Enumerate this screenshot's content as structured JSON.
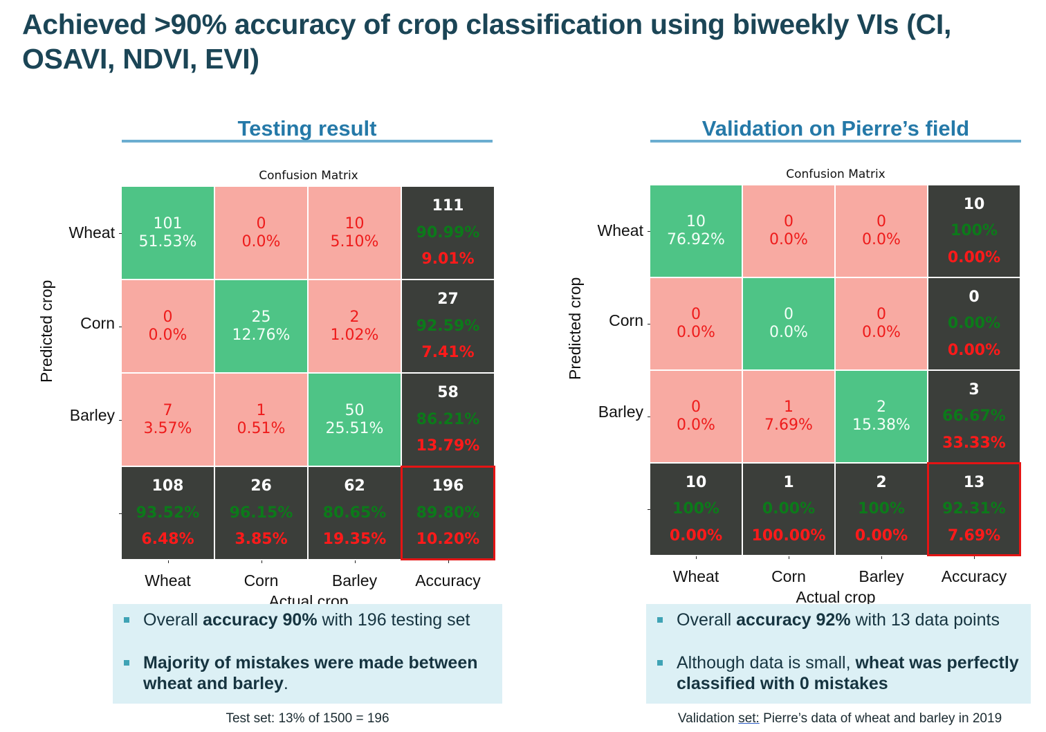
{
  "title": "Achieved >90% accuracy of crop classification using biweekly VIs (CI, OSAVI, NDVI, EVI)",
  "chart_data": [
    {
      "type": "heatmap",
      "panel_heading": "Testing result",
      "title": "Confusion Matrix",
      "xlabel": "Actual crop",
      "ylabel": "Predicted crop",
      "row_labels": [
        "Wheat",
        "Corn",
        "Barley"
      ],
      "col_labels": [
        "Wheat",
        "Corn",
        "Barley",
        "Accuracy"
      ],
      "matrix": [
        [
          {
            "count": "101",
            "pct": "51.53%"
          },
          {
            "count": "0",
            "pct": "0.0%"
          },
          {
            "count": "10",
            "pct": "5.10%"
          }
        ],
        [
          {
            "count": "0",
            "pct": "0.0%"
          },
          {
            "count": "25",
            "pct": "12.76%"
          },
          {
            "count": "2",
            "pct": "1.02%"
          }
        ],
        [
          {
            "count": "7",
            "pct": "3.57%"
          },
          {
            "count": "1",
            "pct": "0.51%"
          },
          {
            "count": "50",
            "pct": "25.51%"
          }
        ]
      ],
      "row_summary": [
        {
          "total": "111",
          "correct": "90.99%",
          "error": "9.01%"
        },
        {
          "total": "27",
          "correct": "92.59%",
          "error": "7.41%"
        },
        {
          "total": "58",
          "correct": "86.21%",
          "error": "13.79%"
        }
      ],
      "col_summary": [
        {
          "total": "108",
          "correct": "93.52%",
          "error": "6.48%"
        },
        {
          "total": "26",
          "correct": "96.15%",
          "error": "3.85%"
        },
        {
          "total": "62",
          "correct": "80.65%",
          "error": "19.35%"
        }
      ],
      "overall": {
        "total": "196",
        "correct": "89.80%",
        "error": "10.20%"
      },
      "notes_html": [
        "Overall <b>accuracy 90%</b> with 196 testing set",
        "<b>Majority of mistakes were made between wheat and barley</b>."
      ],
      "footnote_html": "Test set: 13% of 1500 = 196"
    },
    {
      "type": "heatmap",
      "panel_heading": "Validation on Pierre’s field",
      "title": "Confusion Matrix",
      "xlabel": "Actual crop",
      "ylabel": "Predicted crop",
      "row_labels": [
        "Wheat",
        "Corn",
        "Barley"
      ],
      "col_labels": [
        "Wheat",
        "Corn",
        "Barley",
        "Accuracy"
      ],
      "matrix": [
        [
          {
            "count": "10",
            "pct": "76.92%"
          },
          {
            "count": "0",
            "pct": "0.0%"
          },
          {
            "count": "0",
            "pct": "0.0%"
          }
        ],
        [
          {
            "count": "0",
            "pct": "0.0%"
          },
          {
            "count": "0",
            "pct": "0.0%"
          },
          {
            "count": "0",
            "pct": "0.0%"
          }
        ],
        [
          {
            "count": "0",
            "pct": "0.0%"
          },
          {
            "count": "1",
            "pct": "7.69%"
          },
          {
            "count": "2",
            "pct": "15.38%"
          }
        ]
      ],
      "row_summary": [
        {
          "total": "10",
          "correct": "100%",
          "error": "0.00%"
        },
        {
          "total": "0",
          "correct": "0.00%",
          "error": "0.00%"
        },
        {
          "total": "3",
          "correct": "66.67%",
          "error": "33.33%"
        }
      ],
      "col_summary": [
        {
          "total": "10",
          "correct": "100%",
          "error": "0.00%"
        },
        {
          "total": "1",
          "correct": "0.00%",
          "error": "100.00%"
        },
        {
          "total": "2",
          "correct": "100%",
          "error": "0.00%"
        }
      ],
      "overall": {
        "total": "13",
        "correct": "92.31%",
        "error": "7.69%"
      },
      "notes_html": [
        "Overall <b>accuracy 92%</b> with 13 data points",
        "Although data is small, <b>wheat was perfectly classified with 0 mistakes</b>"
      ],
      "footnote_html": "Validation <span class=\"u\">set:</span> Pierre’s data of wheat and barley in 2019"
    }
  ],
  "colors": {
    "correct_cell": "#4ec486",
    "error_cell": "#f8aaa2",
    "summary_cell": "#3b3e3a",
    "highlight_border": "#e51414",
    "heading": "#2579a8"
  }
}
